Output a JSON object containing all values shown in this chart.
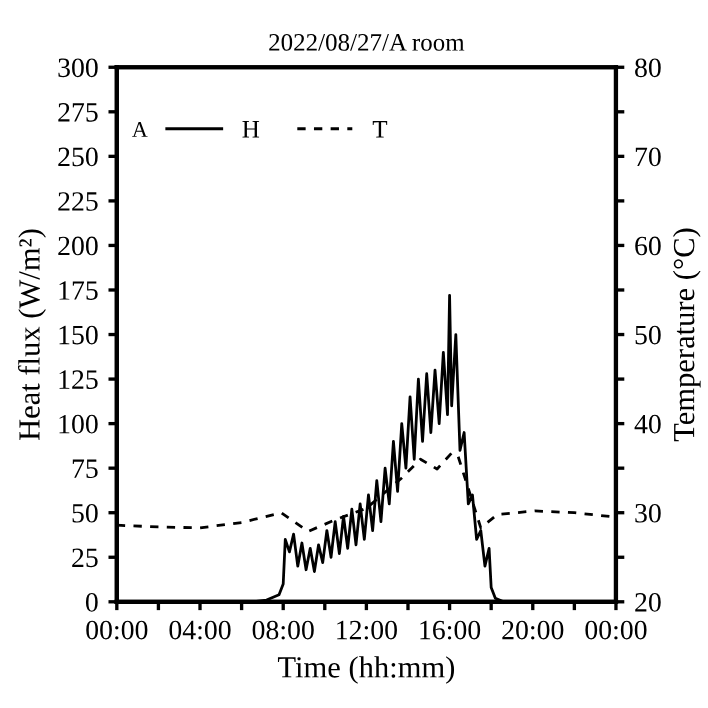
{
  "chart_data": {
    "type": "line",
    "title": "2022/08/27/A room",
    "xlabel": "Time (hh:mm)",
    "ylabel": "Heat flux (W/m²)",
    "y2label": "Temperature (°C)",
    "legend_title": "A",
    "legend": "top left",
    "grid": false,
    "xlim": [
      0,
      24
    ],
    "xticks": [
      {
        "value": 0,
        "label": "00:00"
      },
      {
        "value": 2,
        "label": null
      },
      {
        "value": 4,
        "label": "04:00"
      },
      {
        "value": 6,
        "label": null
      },
      {
        "value": 8,
        "label": "08:00"
      },
      {
        "value": 10,
        "label": null
      },
      {
        "value": 12,
        "label": "12:00"
      },
      {
        "value": 14,
        "label": null
      },
      {
        "value": 16,
        "label": "16:00"
      },
      {
        "value": 18,
        "label": null
      },
      {
        "value": 20,
        "label": "20:00"
      },
      {
        "value": 22,
        "label": null
      },
      {
        "value": 24,
        "label": "00:00"
      }
    ],
    "ylim": [
      0,
      300
    ],
    "yticks": [
      0,
      25,
      50,
      75,
      100,
      125,
      150,
      175,
      200,
      225,
      250,
      275,
      300
    ],
    "y2lim": [
      20,
      80
    ],
    "y2ticks": [
      20,
      {
        "value": 25,
        "label": null
      },
      30,
      {
        "value": 35,
        "label": null
      },
      40,
      {
        "value": 45,
        "label": null
      },
      50,
      {
        "value": 55,
        "label": null
      },
      60,
      {
        "value": 65,
        "label": null
      },
      70,
      {
        "value": 75,
        "label": null
      },
      80
    ],
    "series": [
      {
        "name": "H",
        "color": "#000000",
        "line_style": "solid",
        "x": [
          0,
          6.5,
          7.2,
          7.8,
          8.0,
          8.1,
          8.3,
          8.5,
          8.7,
          8.9,
          9.1,
          9.3,
          9.5,
          9.7,
          9.9,
          10.1,
          10.3,
          10.5,
          10.7,
          10.9,
          11.1,
          11.3,
          11.5,
          11.7,
          11.9,
          12.1,
          12.3,
          12.5,
          12.7,
          12.9,
          13.1,
          13.3,
          13.5,
          13.7,
          13.9,
          14.1,
          14.3,
          14.5,
          14.7,
          14.9,
          15.1,
          15.3,
          15.5,
          15.7,
          15.9,
          16.0,
          16.1,
          16.3,
          16.5,
          16.7,
          16.9,
          17.1,
          17.3,
          17.5,
          17.7,
          17.9,
          18.0,
          18.2,
          18.6,
          20.5
        ],
        "values": [
          0,
          0,
          1,
          4,
          10,
          35,
          28,
          38,
          20,
          33,
          18,
          30,
          17,
          32,
          22,
          40,
          25,
          45,
          27,
          48,
          30,
          52,
          32,
          55,
          35,
          60,
          40,
          68,
          45,
          75,
          55,
          90,
          62,
          100,
          75,
          115,
          80,
          125,
          90,
          128,
          95,
          130,
          100,
          140,
          105,
          172,
          110,
          150,
          85,
          95,
          55,
          60,
          35,
          40,
          20,
          30,
          8,
          2,
          0,
          0
        ]
      },
      {
        "name": "T",
        "color": "#000000",
        "line_style": "dashed",
        "axis": "y2",
        "x": [
          0,
          2,
          4,
          6,
          7.9,
          9.2,
          10.5,
          12,
          13.7,
          14.6,
          15.4,
          16.1,
          16.4,
          17.5,
          18.3,
          20.1,
          22,
          24
        ],
        "values": [
          28.6,
          28.4,
          28.3,
          28.9,
          30.0,
          27.9,
          29.2,
          30.5,
          33.9,
          36.0,
          34.9,
          36.7,
          36.4,
          28.3,
          29.8,
          30.2,
          30.0,
          29.5
        ]
      }
    ]
  }
}
